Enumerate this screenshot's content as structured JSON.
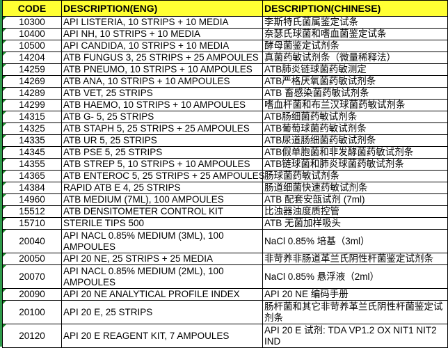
{
  "header": {
    "code": "CODE",
    "eng": "DESCRIPTION(ENG)",
    "chinese": "DESCRIPTION(CHINESE)"
  },
  "colors": {
    "header_bg": "#ffff33",
    "left_strip": "#2e9b4a"
  },
  "rows": [
    {
      "code": "10300",
      "eng": "API LISTERIA, 10 STRIPS + 10 MEDIA",
      "chinese": "李斯特氏菌属鉴定试条"
    },
    {
      "code": "10400",
      "eng": "API NH, 10 STRIPS + 10 MEDIA",
      "chinese": "奈瑟氏球菌和嗜血菌鉴定试条"
    },
    {
      "code": "10500",
      "eng": "API CANDIDA, 10 STRIPS + 10 MEDIA",
      "chinese": "酵母菌鉴定试剂条"
    },
    {
      "code": "14204",
      "eng": "ATB FUNGUS 3, 25 STRIPS + 25 AMPOULES",
      "chinese": "真菌药敏试剂条（微量稀释法）"
    },
    {
      "code": "14259",
      "eng": "ATB PNEUMO, 10 STRIPS + 10 AMPOULES",
      "chinese": "ATB肺炎链球菌药敏测定"
    },
    {
      "code": "14269",
      "eng": "ATB ANA, 10 STRIPS + 10 AMPOULES",
      "chinese": "ATB严格厌氧菌药敏试剂条"
    },
    {
      "code": "14289",
      "eng": "ATB VET, 25 STRIPS",
      "chinese": "ATB 畜感染菌药敏试剂条"
    },
    {
      "code": "14299",
      "eng": "ATB HAEMO, 10 STRIPS + 10 AMPOULES",
      "chinese": "嗜血杆菌和布兰汉球菌药敏试剂条"
    },
    {
      "code": "14315",
      "eng": "ATB G- 5, 25 STRIPS",
      "chinese": "ATB肠细菌药敏试剂条"
    },
    {
      "code": "14325",
      "eng": "ATB STAPH 5, 25 STRIPS + 25 AMPOULES",
      "chinese": "ATB葡萄球菌药敏试剂条"
    },
    {
      "code": "14335",
      "eng": "ATB UR 5, 25 STRIPS",
      "chinese": "ATB尿道肠细菌药敏试剂条"
    },
    {
      "code": "14345",
      "eng": "ATB PSE 5, 25 STRIPS",
      "chinese": "ATB假单胞菌和非发酵菌药敏试剂条"
    },
    {
      "code": "14355",
      "eng": "ATB STREP 5, 10 STRIPS + 10 AMPOULES",
      "chinese": "ATB链球菌和肺炎球菌药敏试剂条"
    },
    {
      "code": "14365",
      "eng": "ATB ENTEROC 5, 25 STRIPS + 25 AMPOULES",
      "chinese": "肠球菌药敏试剂条"
    },
    {
      "code": "14384",
      "eng": "RAPID ATB E 4, 25 STRIPS",
      "chinese": "肠道细菌快速药敏试剂条"
    },
    {
      "code": "14960",
      "eng": "ATB MEDIUM (7ML), 100 AMPOULES",
      "chinese": "ATB 配套安瓿试剂 (7ml)"
    },
    {
      "code": "15512",
      "eng": "ATB DENSITOMETER CONTROL KIT",
      "chinese": "比浊器浊度质控管"
    },
    {
      "code": "15710",
      "eng": "STERILE TIPS 500",
      "chinese": "ATB 无菌加样吸头"
    },
    {
      "code": "20040",
      "eng": "API NACL 0.85% MEDIUM (3ML), 100 AMPOULES",
      "chinese": "NaCl 0.85% 培基（3ml）"
    },
    {
      "code": "20050",
      "eng": "API 20 NE, 25 STRIPS + 25 MEDIA",
      "chinese": "非苛养非肠道革兰氏阴性杆菌鉴定试剂条"
    },
    {
      "code": "20070",
      "eng": "API NACL 0.85% MEDIUM (2ML), 100 AMPOULES",
      "chinese": "NaCl 0.85% 悬浮液（2ml）"
    },
    {
      "code": "20090",
      "eng": "API 20 NE ANALYTICAL PROFILE INDEX",
      "chinese": "API 20 NE 编码手册"
    },
    {
      "code": "20100",
      "eng": "API 20 E, 25 STRIPS",
      "chinese": "肠杆菌和其它非苛养革兰氏阴性杆菌鉴定试剂条"
    },
    {
      "code": "20120",
      "eng": "API 20 E REAGENT KIT, 7 AMPOULES",
      "chinese": "API 20 E 试剂: TDA VP1.2 OX NIT1 NIT2 IND"
    }
  ]
}
